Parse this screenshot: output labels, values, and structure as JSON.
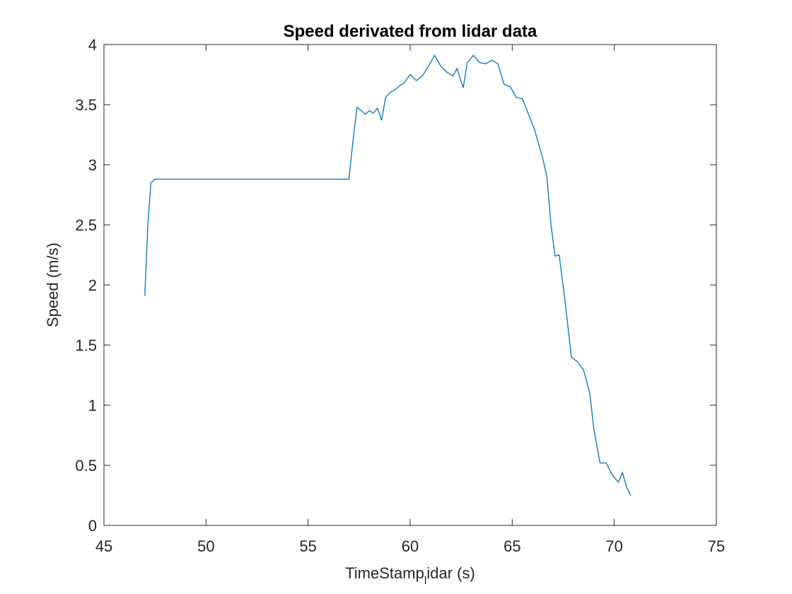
{
  "chart_data": {
    "type": "line",
    "title": "Speed derivated from lidar data",
    "xlabel": [
      "TimeStamp",
      "l",
      "idar (s)"
    ],
    "ylabel": "Speed (m/s)",
    "x": [
      47.0,
      47.15,
      47.3,
      47.5,
      57.0,
      57.2,
      57.4,
      57.6,
      57.8,
      58.0,
      58.2,
      58.4,
      58.6,
      58.8,
      59.0,
      59.3,
      59.5,
      59.7,
      60.0,
      60.3,
      60.6,
      60.9,
      61.2,
      61.5,
      61.8,
      62.1,
      62.3,
      62.6,
      62.8,
      63.1,
      63.4,
      63.7,
      64.0,
      64.3,
      64.6,
      64.9,
      65.2,
      65.5,
      65.8,
      66.1,
      66.5,
      66.7,
      66.9,
      67.1,
      67.3,
      67.6,
      67.9,
      68.2,
      68.5,
      68.8,
      69.0,
      69.3,
      69.6,
      69.9,
      70.2,
      70.4,
      70.6,
      70.8
    ],
    "series": [
      {
        "color": "#0072bd",
        "values": [
          1.91,
          2.5,
          2.85,
          2.88,
          2.88,
          3.2,
          3.48,
          3.45,
          3.42,
          3.45,
          3.43,
          3.47,
          3.37,
          3.56,
          3.6,
          3.63,
          3.66,
          3.68,
          3.75,
          3.7,
          3.74,
          3.82,
          3.91,
          3.82,
          3.77,
          3.74,
          3.8,
          3.64,
          3.85,
          3.91,
          3.85,
          3.84,
          3.87,
          3.84,
          3.67,
          3.65,
          3.56,
          3.55,
          3.42,
          3.29,
          3.05,
          2.9,
          2.5,
          2.24,
          2.25,
          1.85,
          1.4,
          1.36,
          1.29,
          1.1,
          0.8,
          0.52,
          0.52,
          0.42,
          0.36,
          0.44,
          0.32,
          0.25
        ]
      }
    ],
    "xlim": [
      45,
      75
    ],
    "xticks": [
      45,
      50,
      55,
      60,
      65,
      70,
      75
    ],
    "ylim": [
      0,
      4
    ],
    "yticks": [
      0,
      0.5,
      1,
      1.5,
      2,
      2.5,
      3,
      3.5,
      4
    ],
    "grid": false
  }
}
